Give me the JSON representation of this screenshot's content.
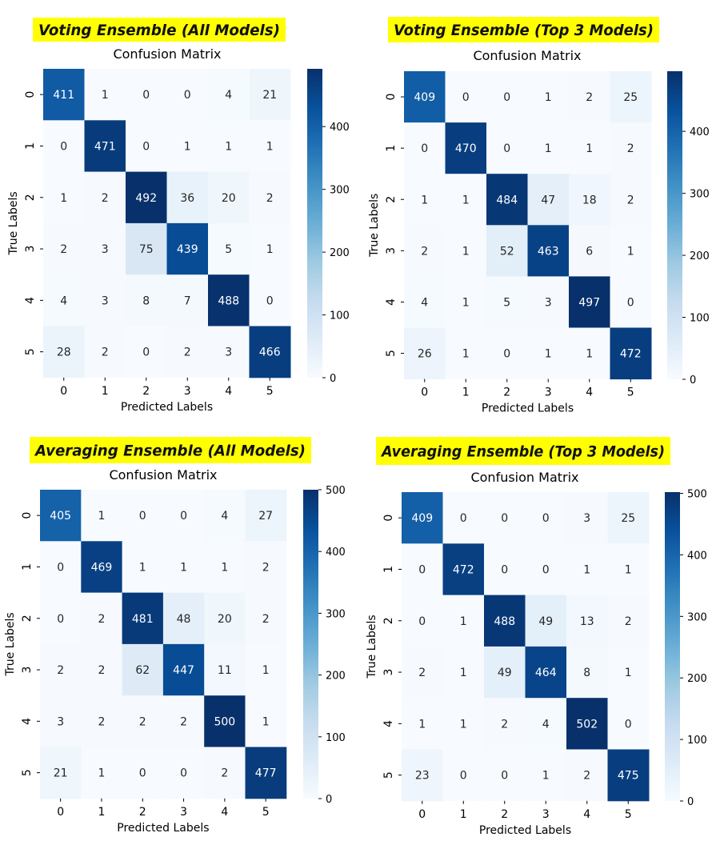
{
  "chart_data": [
    {
      "type": "heatmap",
      "banner": "Voting Ensemble (All Models)",
      "title": "Confusion Matrix",
      "xlabel": "Predicted Labels",
      "ylabel": "True Labels",
      "x_ticks": [
        "0",
        "1",
        "2",
        "3",
        "4",
        "5"
      ],
      "y_ticks": [
        "0",
        "1",
        "2",
        "3",
        "4",
        "5"
      ],
      "values": [
        [
          411,
          1,
          0,
          0,
          4,
          21
        ],
        [
          0,
          471,
          0,
          1,
          1,
          1
        ],
        [
          1,
          2,
          492,
          36,
          20,
          2
        ],
        [
          2,
          3,
          75,
          439,
          5,
          1
        ],
        [
          4,
          3,
          8,
          7,
          488,
          0
        ],
        [
          28,
          2,
          0,
          2,
          3,
          466
        ]
      ],
      "colorbar": {
        "min": 0,
        "max": 492,
        "ticks": [
          0,
          100,
          200,
          300,
          400
        ]
      }
    },
    {
      "type": "heatmap",
      "banner": "Voting Ensemble (Top 3 Models)",
      "title": "Confusion Matrix",
      "xlabel": "Predicted Labels",
      "ylabel": "True Labels",
      "x_ticks": [
        "0",
        "1",
        "2",
        "3",
        "4",
        "5"
      ],
      "y_ticks": [
        "0",
        "1",
        "2",
        "3",
        "4",
        "5"
      ],
      "values": [
        [
          409,
          0,
          0,
          1,
          2,
          25
        ],
        [
          0,
          470,
          0,
          1,
          1,
          2
        ],
        [
          1,
          1,
          484,
          47,
          18,
          2
        ],
        [
          2,
          1,
          52,
          463,
          6,
          1
        ],
        [
          4,
          1,
          5,
          3,
          497,
          0
        ],
        [
          26,
          1,
          0,
          1,
          1,
          472
        ]
      ],
      "colorbar": {
        "min": 0,
        "max": 497,
        "ticks": [
          0,
          100,
          200,
          300,
          400
        ]
      }
    },
    {
      "type": "heatmap",
      "banner": "Averaging Ensemble (All Models)",
      "title": "Confusion Matrix",
      "xlabel": "Predicted Labels",
      "ylabel": "True Labels",
      "x_ticks": [
        "0",
        "1",
        "2",
        "3",
        "4",
        "5"
      ],
      "y_ticks": [
        "0",
        "1",
        "2",
        "3",
        "4",
        "5"
      ],
      "values": [
        [
          405,
          1,
          0,
          0,
          4,
          27
        ],
        [
          0,
          469,
          1,
          1,
          1,
          2
        ],
        [
          0,
          2,
          481,
          48,
          20,
          2
        ],
        [
          2,
          2,
          62,
          447,
          11,
          1
        ],
        [
          3,
          2,
          2,
          2,
          500,
          1
        ],
        [
          21,
          1,
          0,
          0,
          2,
          477
        ]
      ],
      "colorbar": {
        "min": 0,
        "max": 500,
        "ticks": [
          0,
          100,
          200,
          300,
          400,
          500
        ]
      }
    },
    {
      "type": "heatmap",
      "banner": "Averaging Ensemble (Top 3 Models)",
      "title": "Confusion Matrix",
      "xlabel": "Predicted Labels",
      "ylabel": "True Labels",
      "x_ticks": [
        "0",
        "1",
        "2",
        "3",
        "4",
        "5"
      ],
      "y_ticks": [
        "0",
        "1",
        "2",
        "3",
        "4",
        "5"
      ],
      "values": [
        [
          409,
          0,
          0,
          0,
          3,
          25
        ],
        [
          0,
          472,
          0,
          0,
          1,
          1
        ],
        [
          0,
          1,
          488,
          49,
          13,
          2
        ],
        [
          2,
          1,
          49,
          464,
          8,
          1
        ],
        [
          1,
          1,
          2,
          4,
          502,
          0
        ],
        [
          23,
          0,
          0,
          1,
          2,
          475
        ]
      ],
      "colorbar": {
        "min": 0,
        "max": 502,
        "ticks": [
          0,
          100,
          200,
          300,
          400,
          500
        ]
      }
    }
  ],
  "colors": {
    "banner_bg": "#ffff00",
    "cmap": "Blues"
  }
}
